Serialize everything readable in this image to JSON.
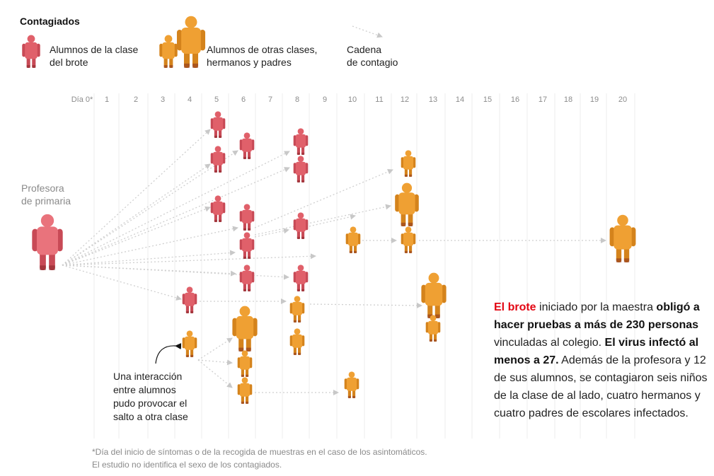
{
  "legend": {
    "title": "Contagiados",
    "class_students": [
      "Alumnos de la clase",
      "del brote"
    ],
    "others": [
      "Alumnos de otras clases,",
      "hermanos y padres"
    ],
    "chain": [
      "Cadena",
      "de contagio"
    ]
  },
  "teacher_label": [
    "Profesora",
    "de primaria"
  ],
  "days": [
    "Día 0*",
    "1",
    "2",
    "3",
    "4",
    "5",
    "6",
    "7",
    "8",
    "9",
    "10",
    "11",
    "12",
    "13",
    "14",
    "15",
    "16",
    "17",
    "18",
    "19",
    "20"
  ],
  "note": [
    "Una interacción",
    "entre alumnos",
    "pudo provocar el",
    "salto a otra clase"
  ],
  "summary": {
    "s1": "El brote",
    "s2": " iniciado por la maestra ",
    "s3": "obligó a hacer pruebas a más de 230 personas",
    "s4": " vinculadas al colegio. ",
    "s5": "El virus infectó al menos a 27.",
    "s6": " Además de la profesora y 12 de sus alumnos, se contagiaron seis niños de la clase de al lado, cuatro hermanos y cuatro padres de escolares infectados."
  },
  "footnote": [
    "*Día del inicio de síntomas o de la recogida de muestras en el caso de los asintomáticos.",
    "El estudio no identifica el sexo de los contagiados."
  ],
  "colors": {
    "class_student": "#e0606a",
    "class_student_shade": "#c84a56",
    "other": "#efa033",
    "other_shade": "#d4831c",
    "teacher": "#e9737c",
    "arrow": "#cfcfcf",
    "emphasis": "#e30613"
  }
}
